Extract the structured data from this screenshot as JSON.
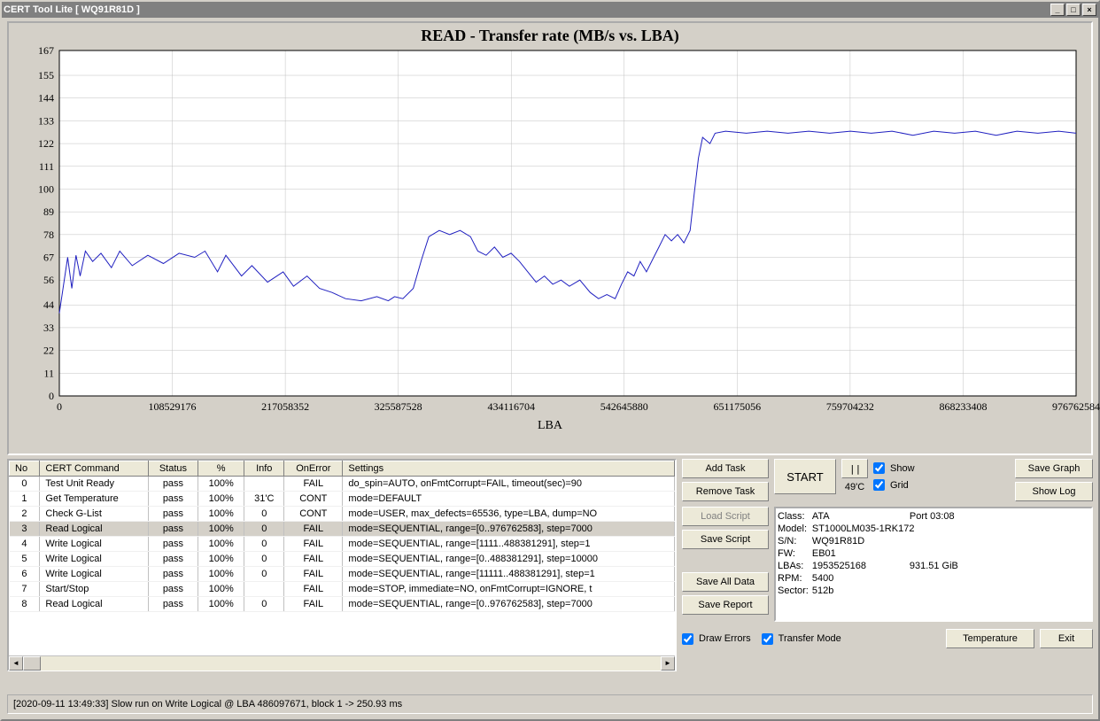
{
  "window": {
    "title": "CERT Tool Lite [ WQ91R81D ]"
  },
  "chart": {
    "type": "line",
    "title": "READ - Transfer rate (MB/s vs. LBA)",
    "xlabel": "LBA",
    "ylim": [
      0,
      167
    ],
    "yticks": [
      0,
      11,
      22,
      33,
      44,
      56,
      67,
      78,
      89,
      100,
      111,
      122,
      133,
      144,
      155,
      167
    ],
    "xlim": [
      0,
      976762584
    ],
    "xticks": [
      0,
      108529176,
      217058352,
      325587528,
      434116704,
      542645880,
      651175056,
      759704232,
      868233408,
      976762584
    ],
    "line_color": "#2020c0",
    "grid_color": "#c0c0c0",
    "background_color": "#ffffff",
    "line_width": 1,
    "title_fontsize": 18,
    "points": [
      [
        0,
        40
      ],
      [
        8000000,
        67
      ],
      [
        12000000,
        52
      ],
      [
        16000000,
        68
      ],
      [
        20000000,
        58
      ],
      [
        25000000,
        70
      ],
      [
        32000000,
        65
      ],
      [
        40000000,
        69
      ],
      [
        50000000,
        62
      ],
      [
        58000000,
        70
      ],
      [
        70000000,
        63
      ],
      [
        85000000,
        68
      ],
      [
        100000000,
        64
      ],
      [
        115000000,
        69
      ],
      [
        130000000,
        67
      ],
      [
        140000000,
        70
      ],
      [
        152000000,
        60
      ],
      [
        160000000,
        68
      ],
      [
        175000000,
        58
      ],
      [
        185000000,
        63
      ],
      [
        200000000,
        55
      ],
      [
        215000000,
        60
      ],
      [
        225000000,
        53
      ],
      [
        238000000,
        58
      ],
      [
        250000000,
        52
      ],
      [
        262000000,
        50
      ],
      [
        275000000,
        47
      ],
      [
        290000000,
        46
      ],
      [
        305000000,
        48
      ],
      [
        316000000,
        46
      ],
      [
        322000000,
        48
      ],
      [
        330000000,
        47
      ],
      [
        340000000,
        52
      ],
      [
        348000000,
        66
      ],
      [
        355000000,
        77
      ],
      [
        365000000,
        80
      ],
      [
        375000000,
        78
      ],
      [
        385000000,
        80
      ],
      [
        395000000,
        77
      ],
      [
        402000000,
        70
      ],
      [
        410000000,
        68
      ],
      [
        418000000,
        72
      ],
      [
        426000000,
        67
      ],
      [
        434000000,
        69
      ],
      [
        442000000,
        65
      ],
      [
        450000000,
        60
      ],
      [
        458000000,
        55
      ],
      [
        466000000,
        58
      ],
      [
        474000000,
        54
      ],
      [
        482000000,
        56
      ],
      [
        490000000,
        53
      ],
      [
        500000000,
        56
      ],
      [
        510000000,
        50
      ],
      [
        518000000,
        47
      ],
      [
        526000000,
        49
      ],
      [
        534000000,
        47
      ],
      [
        540000000,
        54
      ],
      [
        546000000,
        60
      ],
      [
        552000000,
        58
      ],
      [
        558000000,
        65
      ],
      [
        564000000,
        60
      ],
      [
        570000000,
        66
      ],
      [
        576000000,
        72
      ],
      [
        582000000,
        78
      ],
      [
        588000000,
        75
      ],
      [
        594000000,
        78
      ],
      [
        600000000,
        74
      ],
      [
        606000000,
        80
      ],
      [
        610000000,
        98
      ],
      [
        614000000,
        115
      ],
      [
        618000000,
        125
      ],
      [
        625000000,
        122
      ],
      [
        630000000,
        127
      ],
      [
        640000000,
        128
      ],
      [
        660000000,
        127
      ],
      [
        680000000,
        128
      ],
      [
        700000000,
        127
      ],
      [
        720000000,
        128
      ],
      [
        740000000,
        127
      ],
      [
        760000000,
        128
      ],
      [
        780000000,
        127
      ],
      [
        800000000,
        128
      ],
      [
        820000000,
        126
      ],
      [
        840000000,
        128
      ],
      [
        860000000,
        127
      ],
      [
        880000000,
        128
      ],
      [
        900000000,
        126
      ],
      [
        920000000,
        128
      ],
      [
        940000000,
        127
      ],
      [
        960000000,
        128
      ],
      [
        976762584,
        127
      ]
    ]
  },
  "table": {
    "columns": [
      "No",
      "CERT Command",
      "Status",
      "%",
      "Info",
      "OnError",
      "Settings"
    ],
    "selected_row": 3,
    "rows": [
      [
        "0",
        "Test Unit Ready",
        "pass",
        "100%",
        "",
        "FAIL",
        "do_spin=AUTO, onFmtCorrupt=FAIL, timeout(sec)=90"
      ],
      [
        "1",
        "Get Temperature",
        "pass",
        "100%",
        "31'C",
        "CONT",
        "mode=DEFAULT"
      ],
      [
        "2",
        "Check G-List",
        "pass",
        "100%",
        "0",
        "CONT",
        "mode=USER, max_defects=65536, type=LBA, dump=NO"
      ],
      [
        "3",
        "Read Logical",
        "pass",
        "100%",
        "0",
        "FAIL",
        "mode=SEQUENTIAL, range=[0..976762583], step=7000"
      ],
      [
        "4",
        "Write Logical",
        "pass",
        "100%",
        "0",
        "FAIL",
        "mode=SEQUENTIAL, range=[1111..488381291], step=1"
      ],
      [
        "5",
        "Write Logical",
        "pass",
        "100%",
        "0",
        "FAIL",
        "mode=SEQUENTIAL, range=[0..488381291], step=10000"
      ],
      [
        "6",
        "Write Logical",
        "pass",
        "100%",
        "0",
        "FAIL",
        "mode=SEQUENTIAL, range=[11111..488381291], step=1"
      ],
      [
        "7",
        "Start/Stop",
        "pass",
        "100%",
        "",
        "FAIL",
        "mode=STOP, immediate=NO, onFmtCorrupt=IGNORE, t"
      ],
      [
        "8",
        "Read Logical",
        "pass",
        "100%",
        "0",
        "FAIL",
        "mode=SEQUENTIAL, range=[0..976762583], step=7000"
      ]
    ]
  },
  "buttons": {
    "add_task": "Add Task",
    "remove_task": "Remove Task",
    "load_script": "Load Script",
    "save_script": "Save Script",
    "save_all_data": "Save All Data",
    "save_report": "Save Report",
    "start": "START",
    "pause": "||",
    "save_graph": "Save Graph",
    "show_log": "Show Log",
    "temperature": "Temperature",
    "exit": "Exit"
  },
  "checks": {
    "show": "Show",
    "grid": "Grid",
    "draw_errors": "Draw Errors",
    "transfer_mode": "Transfer Mode"
  },
  "temp_display": "49'C",
  "info": {
    "class_label": "Class:",
    "class": "ATA",
    "port_label": "Port 03:08",
    "model_label": "Model:",
    "model": "ST1000LM035-1RK172",
    "sn_label": "S/N:",
    "sn": "WQ91R81D",
    "fw_label": "FW:",
    "fw": "EB01",
    "lbas_label": "LBAs:",
    "lbas": "1953525168",
    "size": "931.51 GiB",
    "rpm_label": "RPM:",
    "rpm": "5400",
    "sector_label": "Sector:",
    "sector": "512b"
  },
  "status": "[2020-09-11 13:49:33] Slow run on Write Logical @ LBA 486097671, block 1 -> 250.93 ms"
}
